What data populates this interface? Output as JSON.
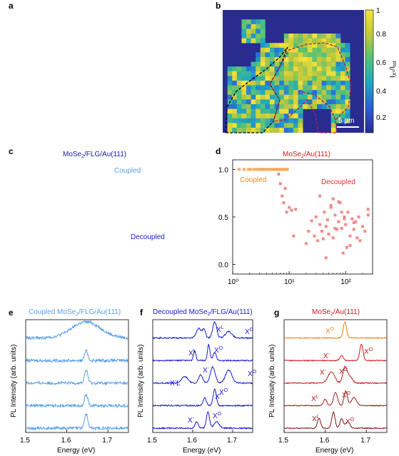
{
  "panels": {
    "a": {
      "letter": "a"
    },
    "b": {
      "letter": "b",
      "colorbar_ticks": [
        "1",
        "0.8",
        "0.6",
        "0.4",
        "0.2"
      ],
      "colorbar_label": "I_X0/I_tot",
      "scalebar_label": "5 µm",
      "colors": {
        "low": "#2a2b8f",
        "mid": "#1fa6c4",
        "high": "#f7e33b",
        "outline_black": "#000000",
        "outline_red": "#b0204a"
      }
    },
    "c": {
      "letter": "c",
      "title": "MoSe₂/FLG/Au(111)",
      "label_coupled": "Coupled",
      "label_decoupled": "Decoupled",
      "colors": {
        "title": "#1a1aa6",
        "coupled": "#5aa0e8",
        "decoupled": "#1a1ad0"
      }
    },
    "d": {
      "letter": "d"
    },
    "e": {
      "letter": "e",
      "title": "Coupled MoSe₂/FLG/Au(111)",
      "title_color": "#5aa0e8"
    },
    "f": {
      "letter": "f",
      "title": "Decoupled MoSe₂/FLG/Au(111)",
      "title_color": "#1a1ad0",
      "peak_labels": [
        "Xᴸ",
        "X⁰",
        "Xᴸ",
        "X⁰",
        "X⁻",
        "X⁻",
        "X⁰",
        "X⁻",
        "X⁰",
        "X⁻",
        "X⁰"
      ]
    },
    "g": {
      "letter": "g",
      "title": "MoSe₂/Au(111)",
      "title_color": "#d01a1a",
      "peak_labels": [
        "X⁰",
        "X⁻",
        "X⁰",
        "X⁻",
        "X⁰",
        "Xᴸ",
        "X⁰",
        "Xᴸ",
        "X⁰"
      ]
    }
  },
  "spectra_axes": {
    "xlabel": "Energy (eV)",
    "ylabel": "PL Intensity (arb. units)",
    "xticks": [
      "1.5",
      "1.6",
      "1.7"
    ]
  },
  "chart_data": [
    {
      "type": "scatter",
      "panel": "d",
      "title": "MoSe₂/Au(111)",
      "xlabel": "",
      "ylabel": "",
      "xscale": "log",
      "xlim": [
        1,
        300
      ],
      "ylim": [
        -0.1,
        1.1
      ],
      "xticks": [
        "10⁰",
        "10¹",
        "10²"
      ],
      "yticks": [
        "0.0",
        "0.5",
        "1.0"
      ],
      "annotations": [
        {
          "text": "Coupled",
          "color": "#f0862a"
        },
        {
          "text": "Decoupled",
          "color": "#e03030"
        }
      ],
      "series": [
        {
          "name": "Coupled",
          "color": "#f7a34a",
          "x": [
            1.3,
            1.6,
            1.9,
            2.1,
            2.4,
            2.7,
            3.0,
            3.3,
            3.6,
            4.0,
            4.4,
            4.8,
            5.2,
            5.6,
            6.0,
            6.5,
            7.0,
            7.5,
            8.0,
            8.7,
            9.3
          ],
          "y": [
            1.0,
            1.0,
            1.0,
            1.0,
            1.0,
            1.0,
            1.0,
            1.0,
            1.0,
            1.0,
            1.0,
            1.0,
            1.0,
            1.0,
            1.0,
            1.0,
            1.0,
            1.0,
            1.0,
            1.0,
            1.0
          ]
        },
        {
          "name": "Decoupled",
          "color": "#ef8080",
          "x": [
            6.5,
            7.0,
            7.5,
            8.0,
            8.5,
            9.0,
            10,
            11,
            12,
            13,
            20,
            22,
            25,
            28,
            30,
            32,
            35,
            38,
            40,
            42,
            45,
            48,
            50,
            55,
            60,
            65,
            70,
            75,
            80,
            85,
            90,
            95,
            100,
            110,
            120,
            130,
            140,
            150,
            160,
            170,
            180,
            200,
            220,
            250,
            60,
            75,
            85,
            95,
            105,
            45,
            55,
            35,
            140,
            120,
            65,
            250
          ],
          "y": [
            0.95,
            0.85,
            0.72,
            0.65,
            0.8,
            0.55,
            0.6,
            0.57,
            0.3,
            0.58,
            0.22,
            0.35,
            0.46,
            0.3,
            0.5,
            0.25,
            0.42,
            0.35,
            0.27,
            0.55,
            0.4,
            0.47,
            0.32,
            0.6,
            0.28,
            0.52,
            0.37,
            0.45,
            0.65,
            0.38,
            0.12,
            0.5,
            0.42,
            0.55,
            0.3,
            0.48,
            0.37,
            0.45,
            0.28,
            0.5,
            0.25,
            0.4,
            0.35,
            0.58,
            0.69,
            0.66,
            0.55,
            0.48,
            0.18,
            0.07,
            0.62,
            0.72,
            0.44,
            0.2,
            0.38,
            0.52
          ]
        }
      ]
    }
  ]
}
